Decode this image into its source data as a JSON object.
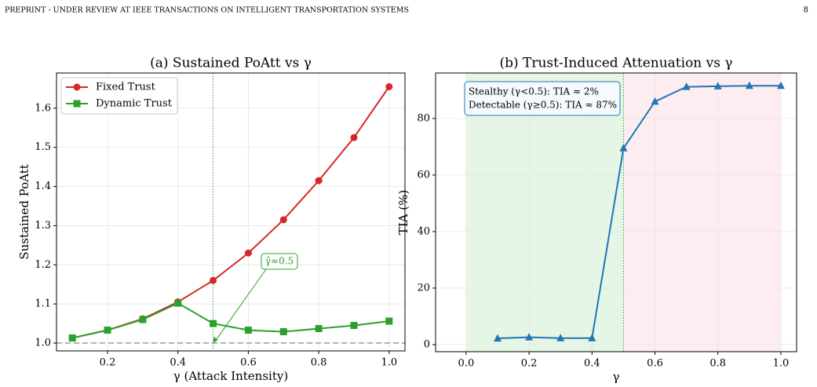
{
  "header": {
    "text": "PREPRINT - UNDER REVIEW AT IEEE TRANSACTIONS ON INTELLIGENT TRANSPORTATION SYSTEMS",
    "page": "8"
  },
  "chart_data": [
    {
      "type": "line",
      "title": "(a) Sustained PoAtt vs γ",
      "xlabel": "γ (Attack Intensity)",
      "ylabel": "Sustained PoAtt",
      "x": [
        0.1,
        0.2,
        0.3,
        0.4,
        0.5,
        0.6,
        0.7,
        0.8,
        0.9,
        1.0
      ],
      "series": [
        {
          "name": "Fixed Trust",
          "color": "#d62728",
          "marker": "circle",
          "values": [
            1.013,
            1.033,
            1.062,
            1.105,
            1.16,
            1.23,
            1.315,
            1.415,
            1.525,
            1.655
          ]
        },
        {
          "name": "Dynamic Trust",
          "color": "#2ca02c",
          "marker": "square",
          "values": [
            1.013,
            1.033,
            1.06,
            1.102,
            1.05,
            1.033,
            1.029,
            1.037,
            1.045,
            1.056
          ]
        }
      ],
      "xlim": [
        0.055,
        1.045
      ],
      "ylim": [
        0.98,
        1.69
      ],
      "xticks": [
        0.2,
        0.4,
        0.6,
        0.8,
        {
          "value": 1.0,
          "label": "1.0"
        }
      ],
      "yticks": [
        {
          "value": 1.0,
          "label": "1.0"
        },
        1.1,
        1.2,
        1.3,
        1.4,
        1.5,
        1.6
      ],
      "grid": true,
      "legend": "upper-left",
      "hline": {
        "value": 1.0,
        "color": "#aaaaaa"
      },
      "vline": {
        "value": 0.5,
        "color": "#2ca02c"
      },
      "annotation": {
        "text": "γ̂≈0.5",
        "xy": [
          0.5,
          1.0
        ],
        "color": "#2ca02c"
      }
    },
    {
      "type": "line",
      "title": "(b) Trust-Induced Attenuation vs γ",
      "xlabel": "γ",
      "ylabel": "TIA (%)",
      "x": [
        0.1,
        0.2,
        0.3,
        0.4,
        0.5,
        0.6,
        0.7,
        0.8,
        0.9,
        1.0
      ],
      "values": [
        2.2,
        2.6,
        2.3,
        2.3,
        69.5,
        86,
        91.2,
        91.4,
        91.6,
        91.6
      ],
      "color": "#1f77b4",
      "marker": "triangle",
      "xlim": [
        -0.097,
        1.05
      ],
      "ylim": [
        -2.5,
        96.1
      ],
      "xticks": [
        {
          "value": 0.0,
          "label": "0.0"
        },
        0.2,
        0.4,
        0.6,
        0.8,
        {
          "value": 1.0,
          "label": "1.0"
        }
      ],
      "yticks": [
        0,
        20,
        40,
        60,
        80
      ],
      "grid": true,
      "regions": [
        {
          "x": [
            0.0,
            0.5
          ],
          "color": "#e6f6e6"
        },
        {
          "x": [
            0.5,
            1.0
          ],
          "color": "#fdedf0"
        }
      ],
      "vline": {
        "value": 0.5,
        "color": "#2ca02c"
      },
      "annotation": {
        "lines": [
          "Stealthy (γ<0.5): TIA ≈ 2%",
          "Detectable (γ≥0.5): TIA ≈ 87%"
        ],
        "color": "#1f77b4"
      }
    }
  ]
}
